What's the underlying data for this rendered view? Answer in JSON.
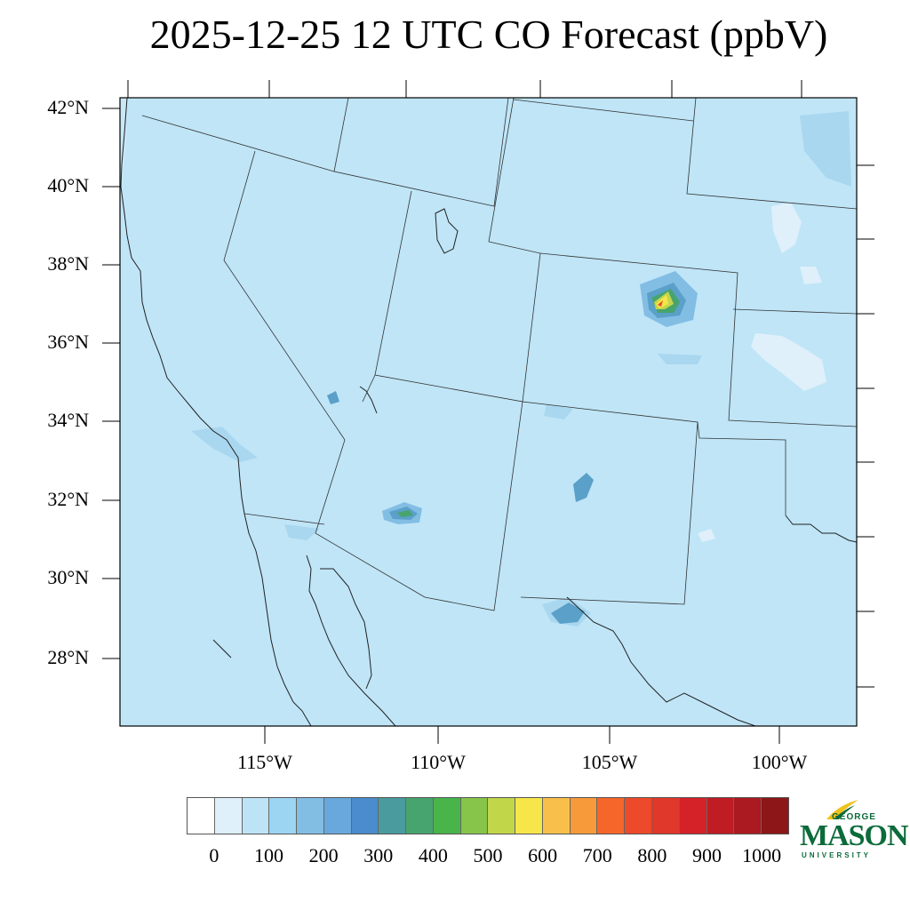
{
  "title": "2025-12-25 12 UTC CO Forecast (ppbV)",
  "lat_labels": [
    "42°N",
    "40°N",
    "38°N",
    "36°N",
    "34°N",
    "32°N",
    "30°N",
    "28°N"
  ],
  "lon_labels": [
    "115°W",
    "110°W",
    "105°W",
    "100°W"
  ],
  "colorbar": {
    "colors": [
      "#ffffff",
      "#dff0fa",
      "#bde4f6",
      "#9bd5f2",
      "#82bde4",
      "#69a8dc",
      "#4a8ccc",
      "#4a9b9e",
      "#48a46e",
      "#48b44a",
      "#86c44a",
      "#c2d64a",
      "#f6e64a",
      "#f8c04a",
      "#f79a3a",
      "#f5662a",
      "#ec4a2a",
      "#e0382a",
      "#d42228",
      "#c01c24",
      "#aa1a20",
      "#8c1618"
    ],
    "tick_labels": [
      "0",
      "100",
      "200",
      "300",
      "400",
      "500",
      "600",
      "700",
      "800",
      "900",
      "1000"
    ]
  },
  "logo": {
    "line1": "GEORGE",
    "line2": "MASON",
    "line3": "UNIVERSITY",
    "color": "#0b6b3a",
    "accent": "#f2c21b"
  },
  "map_colors": {
    "background": "#bfe5f7",
    "light": "#dff0fa",
    "medium": "#a9d7ef",
    "hotspot": [
      "#5aa0c8",
      "#48a46e",
      "#c2d64a",
      "#f6e64a",
      "#ec4a2a"
    ]
  }
}
